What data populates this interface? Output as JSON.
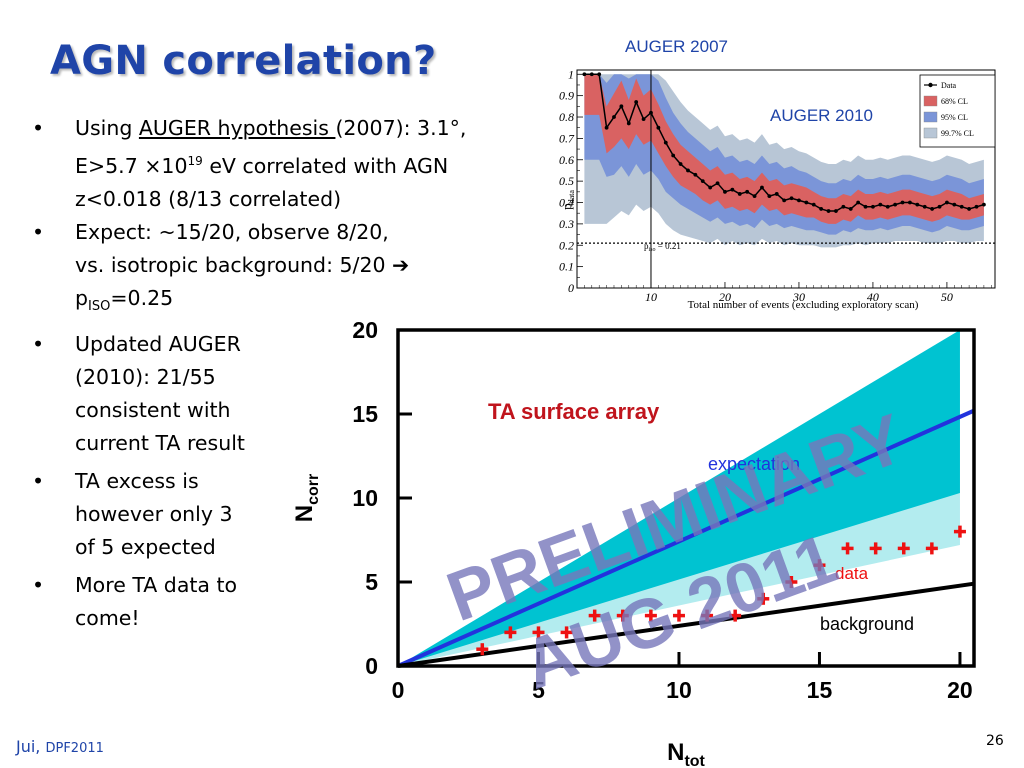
{
  "slide": {
    "title": "AGN correlation?",
    "bullets": [
      {
        "pre": "Using ",
        "link": "AUGER hypothesis ",
        "post1": "(2007): 3.1°,",
        "line2a": "E>5.7 ×10",
        "exp": "19",
        "line2b": " eV correlated with AGN",
        "line3": "z<0.018 (8/13 correlated)"
      },
      {
        "line1": "Expect: ~15/20, observe 8/20,"
      },
      {
        "line1": "vs. isotropic background: 5/20 ➔",
        "line2a": "p",
        "sub": "ISO",
        "line2b": "=0.25"
      },
      {
        "lines": [
          "Updated AUGER",
          "(2010): 21/55",
          "consistent with",
          "current TA result"
        ]
      },
      {
        "lines": [
          "TA excess is",
          "however only 3",
          "of 5 expected"
        ]
      },
      {
        "lines": [
          "More TA data to",
          "come!"
        ]
      }
    ],
    "footer_name": "Jui,",
    "footer_conf": "DPF2011",
    "page_number": "26"
  },
  "chart_data": [
    {
      "type": "line",
      "annotations": [
        "AUGER 2007",
        "AUGER 2010"
      ],
      "xlabel": "Total number of events (excluding exploratory scan)",
      "ylabel_main": "p",
      "ylabel_sub": "data",
      "xlim": [
        0,
        56.5
      ],
      "ylim": [
        0,
        1.02
      ],
      "x_ticks": [
        "10",
        "20",
        "30",
        "40",
        "50"
      ],
      "y_ticks": [
        "0",
        "0.1",
        "0.2",
        "0.3",
        "0.4",
        "0.5",
        "0.6",
        "0.7",
        "0.8",
        "0.9",
        "1"
      ],
      "legend": {
        "position": "top-right",
        "entries": [
          "Data",
          "68% CL",
          "95% CL",
          "99.7% CL"
        ]
      },
      "reference_line": {
        "y": 0.21,
        "label_main": "p",
        "label_sub": "iso",
        "label_rest": " = 0.21"
      },
      "vertical_line_x": 10,
      "colors": {
        "band68": "#d96262",
        "band95": "#7b95d8",
        "band997": "#b8c6d6",
        "data": "#000000"
      },
      "data": {
        "x": [
          1,
          2,
          3,
          4,
          5,
          6,
          7,
          8,
          9,
          10,
          11,
          12,
          13,
          14,
          15,
          16,
          17,
          18,
          19,
          20,
          21,
          22,
          23,
          24,
          25,
          26,
          27,
          28,
          29,
          30,
          31,
          32,
          33,
          34,
          35,
          36,
          37,
          38,
          39,
          40,
          41,
          42,
          43,
          44,
          45,
          46,
          47,
          48,
          49,
          50,
          51,
          52,
          53,
          54,
          55
        ],
        "y": [
          1,
          1,
          1,
          0.75,
          0.8,
          0.85,
          0.77,
          0.87,
          0.79,
          0.82,
          0.75,
          0.68,
          0.62,
          0.58,
          0.55,
          0.53,
          0.5,
          0.47,
          0.49,
          0.45,
          0.46,
          0.44,
          0.45,
          0.43,
          0.47,
          0.43,
          0.44,
          0.41,
          0.42,
          0.41,
          0.4,
          0.39,
          0.37,
          0.36,
          0.36,
          0.38,
          0.37,
          0.4,
          0.38,
          0.38,
          0.39,
          0.38,
          0.39,
          0.4,
          0.4,
          0.39,
          0.38,
          0.37,
          0.38,
          0.4,
          0.39,
          0.38,
          0.37,
          0.38,
          0.39
        ],
        "band68": {
          "lo": [
            0.81,
            0.81,
            0.81,
            0.63,
            0.66,
            0.7,
            0.65,
            0.72,
            0.67,
            0.69,
            0.63,
            0.57,
            0.52,
            0.48,
            0.46,
            0.44,
            0.41,
            0.39,
            0.41,
            0.37,
            0.38,
            0.36,
            0.37,
            0.35,
            0.39,
            0.36,
            0.37,
            0.34,
            0.35,
            0.34,
            0.33,
            0.33,
            0.31,
            0.3,
            0.3,
            0.32,
            0.31,
            0.34,
            0.32,
            0.32,
            0.33,
            0.32,
            0.33,
            0.34,
            0.34,
            0.33,
            0.32,
            0.31,
            0.32,
            0.34,
            0.33,
            0.32,
            0.32,
            0.33,
            0.34
          ],
          "hi": [
            1,
            1,
            1,
            0.85,
            0.91,
            0.97,
            0.88,
            0.98,
            0.9,
            0.93,
            0.86,
            0.78,
            0.72,
            0.67,
            0.64,
            0.61,
            0.58,
            0.55,
            0.57,
            0.53,
            0.54,
            0.51,
            0.52,
            0.5,
            0.54,
            0.5,
            0.51,
            0.48,
            0.49,
            0.48,
            0.47,
            0.45,
            0.43,
            0.42,
            0.42,
            0.44,
            0.43,
            0.46,
            0.44,
            0.44,
            0.45,
            0.44,
            0.45,
            0.46,
            0.46,
            0.45,
            0.44,
            0.43,
            0.44,
            0.46,
            0.45,
            0.44,
            0.42,
            0.43,
            0.44
          ]
        },
        "band95": {
          "lo": [
            0.6,
            0.6,
            0.6,
            0.52,
            0.53,
            0.57,
            0.52,
            0.58,
            0.53,
            0.55,
            0.51,
            0.45,
            0.42,
            0.39,
            0.37,
            0.35,
            0.33,
            0.31,
            0.33,
            0.3,
            0.31,
            0.29,
            0.3,
            0.28,
            0.32,
            0.29,
            0.3,
            0.28,
            0.29,
            0.28,
            0.27,
            0.27,
            0.26,
            0.25,
            0.25,
            0.27,
            0.26,
            0.28,
            0.27,
            0.27,
            0.28,
            0.27,
            0.28,
            0.29,
            0.29,
            0.28,
            0.27,
            0.26,
            0.27,
            0.29,
            0.28,
            0.27,
            0.27,
            0.28,
            0.29
          ],
          "hi": [
            1,
            1,
            1,
            0.96,
            1,
            1,
            0.98,
            1,
            1,
            1,
            0.97,
            0.89,
            0.82,
            0.77,
            0.73,
            0.7,
            0.67,
            0.64,
            0.66,
            0.61,
            0.62,
            0.59,
            0.6,
            0.58,
            0.62,
            0.58,
            0.59,
            0.56,
            0.57,
            0.55,
            0.54,
            0.52,
            0.5,
            0.49,
            0.49,
            0.51,
            0.5,
            0.53,
            0.51,
            0.51,
            0.52,
            0.51,
            0.52,
            0.53,
            0.53,
            0.52,
            0.51,
            0.5,
            0.51,
            0.53,
            0.52,
            0.51,
            0.49,
            0.5,
            0.51
          ]
        },
        "band997": {
          "lo": [
            0.3,
            0.3,
            0.3,
            0.3,
            0.33,
            0.36,
            0.34,
            0.39,
            0.36,
            0.38,
            0.35,
            0.3,
            0.27,
            0.25,
            0.24,
            0.23,
            0.22,
            0.21,
            0.23,
            0.2,
            0.22,
            0.2,
            0.21,
            0.2,
            0.23,
            0.21,
            0.22,
            0.2,
            0.21,
            0.2,
            0.2,
            0.2,
            0.19,
            0.19,
            0.19,
            0.2,
            0.2,
            0.21,
            0.2,
            0.21,
            0.21,
            0.21,
            0.22,
            0.22,
            0.22,
            0.22,
            0.21,
            0.21,
            0.21,
            0.22,
            0.22,
            0.21,
            0.21,
            0.22,
            0.22
          ],
          "hi": [
            1,
            1,
            1,
            1,
            1,
            1,
            1,
            1,
            1,
            1,
            1,
            0.97,
            0.92,
            0.87,
            0.83,
            0.8,
            0.77,
            0.74,
            0.76,
            0.71,
            0.72,
            0.69,
            0.7,
            0.68,
            0.72,
            0.67,
            0.68,
            0.65,
            0.66,
            0.64,
            0.63,
            0.61,
            0.59,
            0.58,
            0.58,
            0.6,
            0.59,
            0.62,
            0.6,
            0.6,
            0.61,
            0.6,
            0.61,
            0.62,
            0.62,
            0.61,
            0.6,
            0.59,
            0.6,
            0.62,
            0.61,
            0.6,
            0.58,
            0.59,
            0.6
          ]
        }
      }
    },
    {
      "type": "scatter",
      "title": "TA surface array",
      "xlabel_main": "N",
      "xlabel_sub": "tot",
      "ylabel_main": "N",
      "ylabel_sub": "corr",
      "xlim": [
        0,
        20.5
      ],
      "ylim": [
        0,
        20
      ],
      "x_ticks": [
        "0",
        "5",
        "10",
        "15",
        "20"
      ],
      "y_ticks": [
        "0",
        "5",
        "10",
        "15",
        "20"
      ],
      "labels": {
        "expectation": "expectation",
        "data": "data",
        "background": "background"
      },
      "watermark": [
        "PRELIMINARY",
        "AUG 2011"
      ],
      "colors": {
        "band_outer": "#b3ecef",
        "band_inner": "#00c3d1",
        "expectation": "#2233dd",
        "background": "#000000",
        "data": "#ee1111",
        "watermark": "#7777bb"
      },
      "expectation": {
        "x": [
          0,
          20.5
        ],
        "y": [
          0,
          15.2
        ]
      },
      "background_line": {
        "x": [
          0,
          20.5
        ],
        "y": [
          0,
          4.9
        ]
      },
      "band_outer": {
        "x": [
          0,
          20
        ],
        "lo": [
          0,
          7.2
        ],
        "hi": [
          0,
          20
        ]
      },
      "band_inner": {
        "x": [
          0,
          20
        ],
        "lo": [
          0,
          10.3
        ],
        "hi": [
          0,
          20
        ]
      },
      "data": {
        "x": [
          3,
          4,
          5,
          6,
          7,
          8,
          9,
          10,
          11,
          12,
          13,
          14,
          15,
          16,
          17,
          18,
          19,
          20
        ],
        "y": [
          1,
          2,
          2,
          2,
          3,
          3,
          3,
          3,
          3,
          3,
          4,
          5,
          6,
          7,
          7,
          7,
          7,
          8
        ]
      }
    }
  ]
}
